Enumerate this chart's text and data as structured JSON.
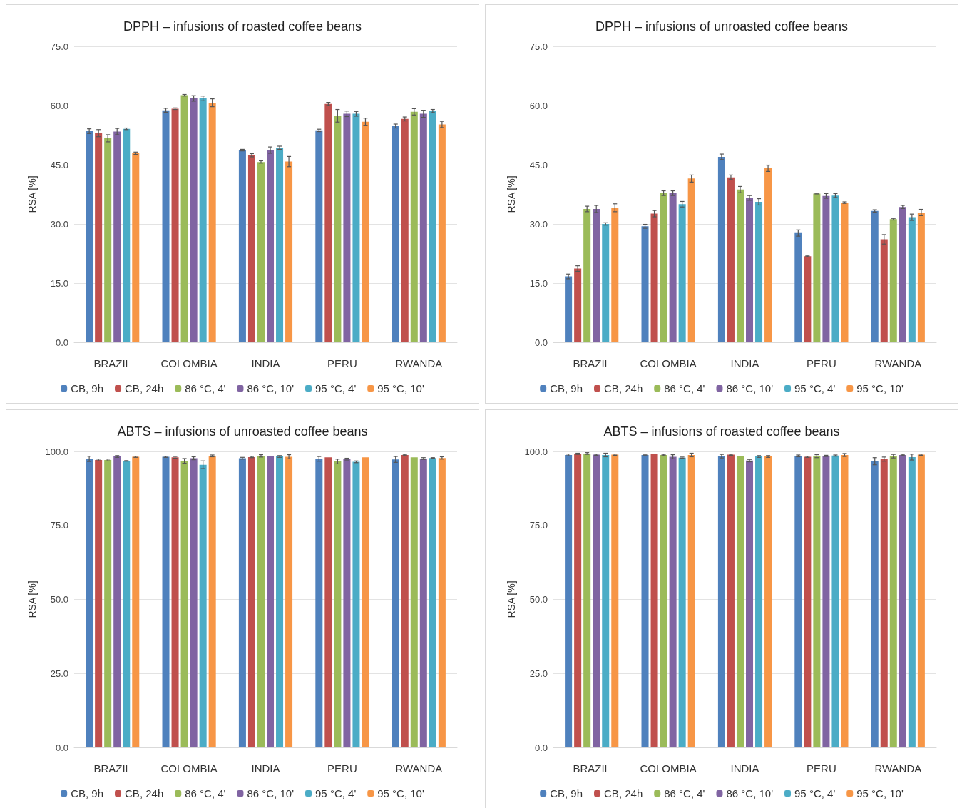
{
  "chart_data": [
    {
      "type": "bar",
      "title": "DPPH – infusions of roasted coffee beans",
      "ylabel": "RSA [%]",
      "categories": [
        "BRAZIL",
        "COLOMBIA",
        "INDIA",
        "PERU",
        "RWANDA"
      ],
      "ylim": [
        0,
        75
      ],
      "yticks": [
        {
          "value": 0,
          "label": "0.0"
        },
        {
          "value": 15,
          "label": "15.0"
        },
        {
          "value": 30,
          "label": "30.0"
        },
        {
          "value": 45,
          "label": "45.0"
        },
        {
          "value": 60,
          "label": "60.0"
        },
        {
          "value": 75,
          "label": "75.0"
        }
      ],
      "grid": "y",
      "legend": "bottom",
      "series": [
        {
          "name": "CB, 9h",
          "color": "#4f81bd",
          "values": [
            53.5,
            58.8,
            48.7,
            53.7,
            54.8
          ],
          "errors": [
            0.6,
            0.5,
            0.2,
            0.3,
            0.5
          ]
        },
        {
          "name": "CB, 24h",
          "color": "#c0504d",
          "values": [
            53.0,
            59.2,
            47.4,
            60.4,
            56.6
          ],
          "errors": [
            0.9,
            0.2,
            0.4,
            0.4,
            0.5
          ]
        },
        {
          "name": "86 °C, 4'",
          "color": "#9bbb59",
          "values": [
            51.7,
            62.6,
            45.7,
            57.4,
            58.4
          ],
          "errors": [
            0.9,
            0.2,
            0.3,
            1.6,
            0.8
          ]
        },
        {
          "name": "86 °C, 10'",
          "color": "#8064a2",
          "values": [
            53.4,
            61.8,
            48.7,
            57.9,
            57.9
          ],
          "errors": [
            0.8,
            0.7,
            0.8,
            0.7,
            0.9
          ]
        },
        {
          "name": "95 °C, 4'",
          "color": "#4bacc6",
          "values": [
            54.1,
            61.8,
            49.3,
            57.9,
            58.6
          ],
          "errors": [
            0.2,
            0.6,
            0.4,
            0.6,
            0.4
          ]
        },
        {
          "name": "95 °C, 10'",
          "color": "#f79646",
          "values": [
            47.9,
            60.7,
            45.8,
            55.9,
            55.2
          ],
          "errors": [
            0.3,
            1.0,
            1.3,
            0.9,
            0.8
          ]
        }
      ]
    },
    {
      "type": "bar",
      "title": "DPPH – infusions of unroasted coffee beans",
      "ylabel": "RSA [%]",
      "categories": [
        "BRAZIL",
        "COLOMBIA",
        "INDIA",
        "PERU",
        "RWANDA"
      ],
      "ylim": [
        0,
        75
      ],
      "yticks": [
        {
          "value": 0,
          "label": "0.0"
        },
        {
          "value": 15,
          "label": "15.0"
        },
        {
          "value": 30,
          "label": "30.0"
        },
        {
          "value": 45,
          "label": "45.0"
        },
        {
          "value": 60,
          "label": "60.0"
        },
        {
          "value": 75,
          "label": "75.0"
        }
      ],
      "grid": "y",
      "legend": "bottom",
      "series": [
        {
          "name": "CB, 9h",
          "color": "#4f81bd",
          "values": [
            16.7,
            29.4,
            47.0,
            27.7,
            33.3
          ],
          "errors": [
            0.6,
            0.5,
            0.7,
            0.8,
            0.3
          ]
        },
        {
          "name": "CB, 24h",
          "color": "#c0504d",
          "values": [
            18.7,
            32.6,
            41.8,
            21.8,
            26.1
          ],
          "errors": [
            0.7,
            0.8,
            0.6,
            0.1,
            1.2
          ]
        },
        {
          "name": "86 °C, 4'",
          "color": "#9bbb59",
          "values": [
            33.8,
            37.8,
            38.7,
            37.7,
            31.2
          ],
          "errors": [
            0.7,
            0.6,
            0.8,
            0.1,
            0.2
          ]
        },
        {
          "name": "86 °C, 10'",
          "color": "#8064a2",
          "values": [
            33.8,
            37.8,
            36.6,
            37.1,
            34.3
          ],
          "errors": [
            0.9,
            0.6,
            0.6,
            0.6,
            0.4
          ]
        },
        {
          "name": "95 °C, 4'",
          "color": "#4bacc6",
          "values": [
            30.0,
            35.0,
            35.6,
            37.2,
            31.7
          ],
          "errors": [
            0.3,
            0.7,
            0.8,
            0.5,
            0.8
          ]
        },
        {
          "name": "95 °C, 10'",
          "color": "#f79646",
          "values": [
            34.1,
            41.5,
            44.1,
            35.4,
            32.9
          ],
          "errors": [
            1.0,
            0.9,
            0.8,
            0.2,
            0.8
          ]
        }
      ]
    },
    {
      "type": "bar",
      "title": "ABTS – infusions of unroasted coffee beans",
      "ylabel": "RSA [%]",
      "categories": [
        "BRAZIL",
        "COLOMBIA",
        "INDIA",
        "PERU",
        "RWANDA"
      ],
      "ylim": [
        0,
        100
      ],
      "yticks": [
        {
          "value": 0,
          "label": "0.0"
        },
        {
          "value": 25,
          "label": "25.0"
        },
        {
          "value": 50,
          "label": "50.0"
        },
        {
          "value": 75,
          "label": "75.0"
        },
        {
          "value": 100,
          "label": "100.0"
        }
      ],
      "grid": "y",
      "legend": "bottom",
      "series": [
        {
          "name": "CB, 9h",
          "color": "#4f81bd",
          "values": [
            97.5,
            98.2,
            97.7,
            97.5,
            97.3
          ],
          "errors": [
            0.9,
            0.2,
            0.3,
            0.8,
            1.0
          ]
        },
        {
          "name": "CB, 24h",
          "color": "#c0504d",
          "values": [
            97.1,
            98.0,
            98.1,
            98.0,
            98.8
          ],
          "errors": [
            0.3,
            0.3,
            0.2,
            null,
            0.2
          ]
        },
        {
          "name": "86 °C, 4'",
          "color": "#9bbb59",
          "values": [
            97.1,
            96.8,
            98.5,
            96.6,
            98.0
          ],
          "errors": [
            0.3,
            0.8,
            0.4,
            0.8,
            null
          ]
        },
        {
          "name": "86 °C, 10'",
          "color": "#8064a2",
          "values": [
            98.3,
            97.7,
            98.5,
            97.4,
            97.6
          ],
          "errors": [
            0.3,
            0.5,
            null,
            0.3,
            0.3
          ]
        },
        {
          "name": "95 °C, 4'",
          "color": "#4bacc6",
          "values": [
            96.8,
            95.5,
            98.3,
            96.5,
            97.8
          ],
          "errors": [
            0.1,
            1.3,
            0.3,
            0.3,
            0.1
          ]
        },
        {
          "name": "95 °C, 10'",
          "color": "#f79646",
          "values": [
            98.2,
            98.5,
            98.2,
            98.0,
            97.8
          ],
          "errors": [
            0.2,
            0.3,
            0.7,
            null,
            0.4
          ]
        }
      ]
    },
    {
      "type": "bar",
      "title": "ABTS – infusions of roasted coffee beans",
      "ylabel": "RSA [%]",
      "categories": [
        "BRAZIL",
        "COLOMBIA",
        "INDIA",
        "PERU",
        "RWANDA"
      ],
      "ylim": [
        0,
        100
      ],
      "yticks": [
        {
          "value": 0,
          "label": "0.0"
        },
        {
          "value": 25,
          "label": "25.0"
        },
        {
          "value": 50,
          "label": "50.0"
        },
        {
          "value": 75,
          "label": "75.0"
        },
        {
          "value": 100,
          "label": "100.0"
        }
      ],
      "grid": "y",
      "legend": "bottom",
      "series": [
        {
          "name": "CB, 9h",
          "color": "#4f81bd",
          "values": [
            98.8,
            98.8,
            98.4,
            98.5,
            96.7
          ],
          "errors": [
            0.3,
            0.2,
            0.6,
            0.3,
            1.2
          ]
        },
        {
          "name": "CB, 24h",
          "color": "#c0504d",
          "values": [
            99.2,
            99.2,
            98.9,
            98.2,
            97.4
          ],
          "errors": [
            0.2,
            null,
            0.2,
            0.2,
            0.7
          ]
        },
        {
          "name": "86 °C, 4'",
          "color": "#9bbb59",
          "values": [
            99.3,
            98.8,
            98.4,
            98.4,
            98.4
          ],
          "errors": [
            0.3,
            0.2,
            null,
            0.5,
            0.6
          ]
        },
        {
          "name": "86 °C, 10'",
          "color": "#8064a2",
          "values": [
            98.9,
            98.2,
            96.9,
            98.5,
            98.8
          ],
          "errors": [
            0.2,
            0.7,
            0.4,
            0.2,
            0.2
          ]
        },
        {
          "name": "95 °C, 4'",
          "color": "#4bacc6",
          "values": [
            98.8,
            97.9,
            98.3,
            98.6,
            98.1
          ],
          "errors": [
            0.6,
            0.2,
            0.3,
            0.2,
            1.0
          ]
        },
        {
          "name": "95 °C, 10'",
          "color": "#f79646",
          "values": [
            98.9,
            98.8,
            98.3,
            98.8,
            98.9
          ],
          "errors": [
            0.2,
            0.6,
            0.3,
            0.5,
            0.2
          ]
        }
      ]
    }
  ]
}
